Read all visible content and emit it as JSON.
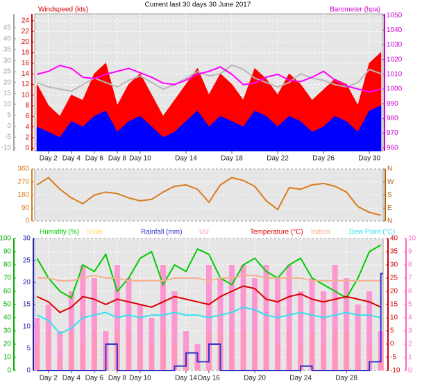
{
  "chart_data": [
    {
      "type": "line",
      "title": "Current last 30 days 30 June 2017",
      "ylabel": "Windspeed (kts)",
      "y2label": "Barometer (hpa)",
      "x": [
        1,
        2,
        3,
        4,
        5,
        6,
        7,
        8,
        9,
        10,
        11,
        12,
        13,
        14,
        15,
        16,
        17,
        18,
        19,
        20,
        21,
        22,
        23,
        24,
        25,
        26,
        27,
        28,
        29,
        30,
        31
      ],
      "xlim": [
        0.8,
        31.2
      ],
      "xticks": [
        {
          "value": 2,
          "label": "Day 2"
        },
        {
          "value": 4,
          "label": "Day 4"
        },
        {
          "value": 6,
          "label": "Day 6"
        },
        {
          "value": 8,
          "label": "Day 8"
        },
        {
          "value": 10,
          "label": "Day 10"
        },
        {
          "value": 14,
          "label": "Day 14"
        },
        {
          "value": 18,
          "label": "Day 18"
        },
        {
          "value": 22,
          "label": "Day 22"
        },
        {
          "value": 26,
          "label": "Day 26"
        },
        {
          "value": 30,
          "label": "Day 30"
        }
      ],
      "ylim": [
        -0.5,
        25.3
      ],
      "yticks": [
        0,
        2,
        4,
        6,
        8,
        10,
        12,
        14,
        16,
        18,
        20,
        22,
        24
      ],
      "ycolor": "#cc0000",
      "y3lim": [
        -11.3,
        51.4
      ],
      "y3ticks": [
        -10,
        -5,
        0,
        5,
        10,
        15,
        20,
        25,
        30,
        35,
        40,
        45
      ],
      "y3color": "#a0a0a0",
      "y2lim": [
        958,
        1051
      ],
      "y2ticks": [
        960,
        970,
        980,
        990,
        1000,
        1010,
        1020,
        1030,
        1040,
        1050
      ],
      "y2color": "#cc00cc",
      "grid": true,
      "series": [
        {
          "color": "#ff0000",
          "style": "area",
          "values": [
            12,
            8,
            6,
            10,
            9,
            14,
            16,
            8,
            12,
            14,
            10,
            6,
            9,
            12,
            15,
            10,
            14,
            12,
            9,
            15,
            13,
            10,
            14,
            12,
            9,
            11,
            13,
            12,
            8,
            16,
            18
          ]
        },
        {
          "color": "#0000ff",
          "style": "area",
          "values": [
            4,
            3,
            2,
            5,
            4,
            6,
            7,
            3,
            5,
            6,
            4,
            2,
            3,
            5,
            7,
            4,
            6,
            5,
            4,
            7,
            6,
            4,
            6,
            5,
            3,
            4,
            6,
            5,
            3,
            7,
            8
          ]
        },
        {
          "color": "#b8b8b8",
          "style": "line",
          "axis": "y3",
          "values": [
            20,
            18,
            17,
            16,
            19,
            22,
            20,
            18,
            21,
            23,
            20,
            17,
            19,
            22,
            25,
            23,
            24,
            28,
            26,
            22,
            20,
            18,
            20,
            24,
            22,
            21,
            19,
            18,
            20,
            26,
            24
          ]
        },
        {
          "color": "#ff00ff",
          "style": "line",
          "axis": "y2",
          "values": [
            1010,
            1012,
            1016,
            1014,
            1008,
            1007,
            1010,
            1012,
            1014,
            1011,
            1008,
            1004,
            1003,
            1006,
            1010,
            1012,
            1015,
            1010,
            1003,
            1004,
            1008,
            1010,
            1006,
            1005,
            1008,
            1012,
            1006,
            1002,
            1000,
            998,
            1000
          ]
        }
      ]
    },
    {
      "type": "line",
      "x": [
        1,
        2,
        3,
        4,
        5,
        6,
        7,
        8,
        9,
        10,
        11,
        12,
        13,
        14,
        15,
        16,
        17,
        18,
        19,
        20,
        21,
        22,
        23,
        24,
        25,
        26,
        27,
        28,
        29,
        30,
        31
      ],
      "xlim": [
        0.8,
        31.2
      ],
      "ylim": [
        0,
        360
      ],
      "yticks": [
        0,
        90,
        180,
        270,
        360
      ],
      "ycolor": "#d97a1a",
      "y2lim": [
        0,
        360
      ],
      "y2ticks": [
        {
          "value": 360,
          "label": "N"
        },
        {
          "value": 270,
          "label": "W"
        },
        {
          "value": 180,
          "label": "S"
        },
        {
          "value": 90,
          "label": "E"
        },
        {
          "value": 0,
          "label": "N"
        }
      ],
      "y2color": "#b06010",
      "grid": true,
      "series": [
        {
          "color": "#d97a1a",
          "style": "line",
          "values": [
            250,
            300,
            220,
            160,
            120,
            180,
            200,
            190,
            160,
            140,
            150,
            200,
            240,
            250,
            220,
            130,
            250,
            300,
            280,
            240,
            140,
            80,
            230,
            220,
            250,
            260,
            240,
            200,
            100,
            60,
            40
          ]
        }
      ]
    },
    {
      "type": "line",
      "x": [
        1,
        2,
        3,
        4,
        5,
        6,
        7,
        8,
        9,
        10,
        11,
        12,
        13,
        14,
        15,
        16,
        17,
        18,
        19,
        20,
        21,
        22,
        23,
        24,
        25,
        26,
        27,
        28,
        29,
        30,
        31
      ],
      "xlim": [
        0.8,
        31.2
      ],
      "xticks": [
        {
          "value": 2,
          "label": "Day 2"
        },
        {
          "value": 4,
          "label": "Day 4"
        },
        {
          "value": 6,
          "label": "Day 6"
        },
        {
          "value": 8,
          "label": "Day 8"
        },
        {
          "value": 10,
          "label": "Day 10"
        },
        {
          "value": 14,
          "label": "Day 14"
        },
        {
          "value": 16,
          "label": "Day 16"
        },
        {
          "value": 20,
          "label": "Day 20"
        },
        {
          "value": 24,
          "label": "Day 24"
        },
        {
          "value": 28,
          "label": "Day 28"
        }
      ],
      "ylim": [
        0,
        100
      ],
      "yticks": [
        0,
        10,
        20,
        30,
        40,
        50,
        60,
        70,
        80,
        90,
        100
      ],
      "ycolor": "#00aa00",
      "y3lim": [
        0,
        30
      ],
      "y3ticks": [
        0,
        5,
        10,
        15,
        20,
        25,
        30
      ],
      "y3color": "#2222aa",
      "y2lim": [
        -10,
        40
      ],
      "y2ticks": [
        -10,
        -5,
        0,
        5,
        10,
        15,
        20,
        25,
        30,
        35,
        40
      ],
      "y2color": "#cc0000",
      "y4lim": [
        0,
        10
      ],
      "y4ticks": [
        0,
        1,
        2,
        3,
        4,
        5,
        6,
        7,
        8,
        9,
        10
      ],
      "y4color": "#ff66bb",
      "grid": true,
      "series": [
        {
          "name": "Humidity (%)",
          "color": "#00cc00",
          "style": "line",
          "values": [
            85,
            70,
            60,
            55,
            80,
            75,
            88,
            60,
            70,
            85,
            90,
            65,
            80,
            75,
            92,
            88,
            70,
            65,
            80,
            85,
            75,
            70,
            80,
            85,
            70,
            65,
            60,
            55,
            70,
            90,
            95
          ]
        },
        {
          "name": "Solar",
          "color": "#ffd966",
          "style": "bar",
          "axis": "y4",
          "values": [
            2,
            3,
            1,
            3,
            2,
            3,
            1,
            3,
            3,
            2,
            2,
            3,
            2,
            1,
            1,
            3,
            3,
            3,
            3,
            3,
            3,
            2,
            3,
            2,
            3,
            2,
            3,
            3,
            2,
            2,
            1
          ]
        },
        {
          "name": "Rainfall (mm)",
          "color": "#3333cc",
          "style": "step",
          "axis": "y3",
          "values": [
            0,
            0,
            0,
            0,
            0,
            0,
            6,
            0,
            0,
            0,
            0,
            0,
            1,
            4,
            2,
            6,
            0,
            0,
            0,
            0,
            0,
            0,
            0,
            1,
            0,
            0,
            0,
            0,
            0,
            2,
            22
          ]
        },
        {
          "name": "UV",
          "color": "#ff88cc",
          "style": "bar",
          "axis": "y4",
          "values": [
            4,
            5,
            3,
            6,
            8,
            7,
            3,
            8,
            7,
            5,
            4,
            8,
            6,
            3,
            2,
            8,
            7,
            8,
            8,
            7,
            8,
            7,
            8,
            6,
            7,
            6,
            8,
            7,
            5,
            6,
            3
          ]
        },
        {
          "name": "Temperature (°C)",
          "color": "#dd0000",
          "style": "line",
          "axis": "y2",
          "values": [
            18,
            16,
            12,
            14,
            18,
            17,
            15,
            17,
            16,
            15,
            14,
            16,
            18,
            17,
            16,
            15,
            18,
            20,
            22,
            21,
            17,
            16,
            18,
            19,
            17,
            16,
            17,
            18,
            17,
            16,
            14
          ]
        },
        {
          "name": "Indoor",
          "color": "#f5b090",
          "style": "line",
          "axis": "y2",
          "values": [
            25,
            25,
            24,
            24,
            25,
            26,
            25,
            25,
            24,
            24,
            24,
            24,
            25,
            25,
            25,
            24,
            25,
            25,
            26,
            26,
            25,
            25,
            25,
            25,
            24,
            24,
            24,
            24,
            24,
            24,
            24
          ]
        },
        {
          "name": "Dew Point (°C)",
          "color": "#33e0ee",
          "style": "line",
          "axis": "y2",
          "values": [
            11,
            9,
            4,
            6,
            10,
            11,
            12,
            10,
            11,
            10,
            11,
            11,
            12,
            11,
            11,
            10,
            11,
            12,
            14,
            13,
            11,
            10,
            11,
            12,
            11,
            10,
            11,
            12,
            11,
            11,
            10
          ]
        }
      ]
    }
  ]
}
